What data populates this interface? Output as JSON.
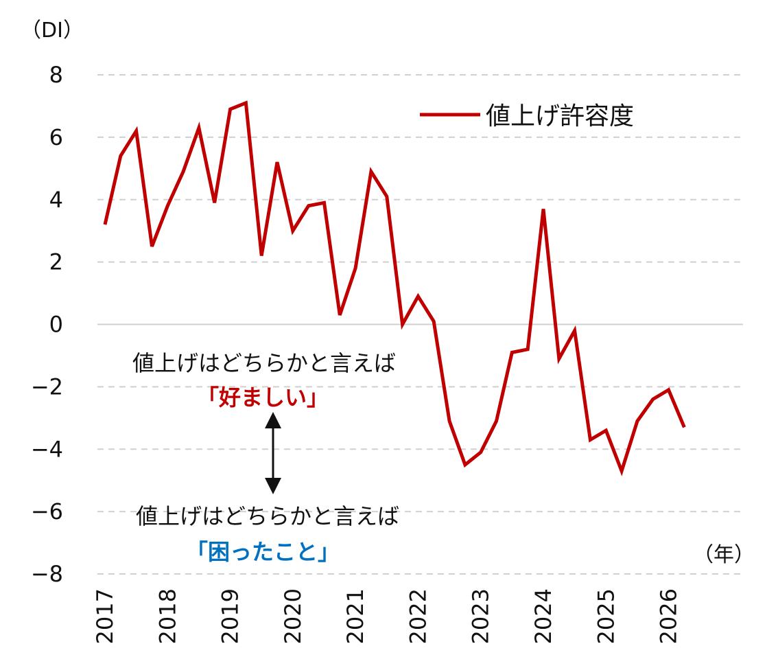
{
  "chart_data": {
    "type": "line",
    "yunit": "（DI）",
    "xunit": "（年）",
    "ylim": [
      -8,
      8
    ],
    "yticks": [
      "8",
      "6",
      "4",
      "2",
      "0",
      "−2",
      "−4",
      "−6",
      "−8"
    ],
    "ytick_values": [
      8,
      6,
      4,
      2,
      0,
      -2,
      -4,
      -6,
      -8
    ],
    "xticks": [
      "2017",
      "2018",
      "2019",
      "2020",
      "2021",
      "2022",
      "2023",
      "2024",
      "2025",
      "2026"
    ],
    "xlim": [
      2017.0,
      2026.75
    ],
    "grid": true,
    "legend": {
      "position": "top-right"
    },
    "series": [
      {
        "name": "値上げ許容度",
        "color": "#c00000",
        "x": [
          2017.0,
          2017.25,
          2017.5,
          2017.75,
          2018.0,
          2018.25,
          2018.5,
          2018.75,
          2019.0,
          2019.25,
          2019.5,
          2019.75,
          2020.0,
          2020.25,
          2020.5,
          2020.75,
          2021.0,
          2021.25,
          2021.5,
          2021.75,
          2022.0,
          2022.25,
          2022.5,
          2022.75,
          2023.0,
          2023.25,
          2023.5,
          2023.75,
          2024.0,
          2024.25,
          2024.5,
          2024.75,
          2025.0,
          2025.25,
          2025.5,
          2025.75,
          2026.0,
          2026.25
        ],
        "y": [
          3.2,
          5.4,
          6.2,
          2.5,
          3.8,
          4.9,
          6.3,
          3.9,
          6.9,
          7.1,
          2.2,
          5.2,
          3.0,
          3.8,
          3.9,
          0.3,
          1.8,
          4.9,
          4.1,
          0.0,
          0.9,
          0.1,
          -3.1,
          -4.5,
          -4.1,
          -3.1,
          -0.9,
          -0.8,
          3.7,
          -1.1,
          -0.2,
          -3.7,
          -3.4,
          -4.7,
          -3.1,
          -2.4,
          -2.1,
          -3.3
        ]
      }
    ],
    "annotations": {
      "upper_text": "値上げはどちらかと言えば",
      "upper_highlight": "「好ましい」",
      "lower_text": "値上げはどちらかと言えば",
      "lower_highlight": "「困ったこと」",
      "upper_color": "#c00000",
      "lower_color": "#0070c0"
    }
  }
}
